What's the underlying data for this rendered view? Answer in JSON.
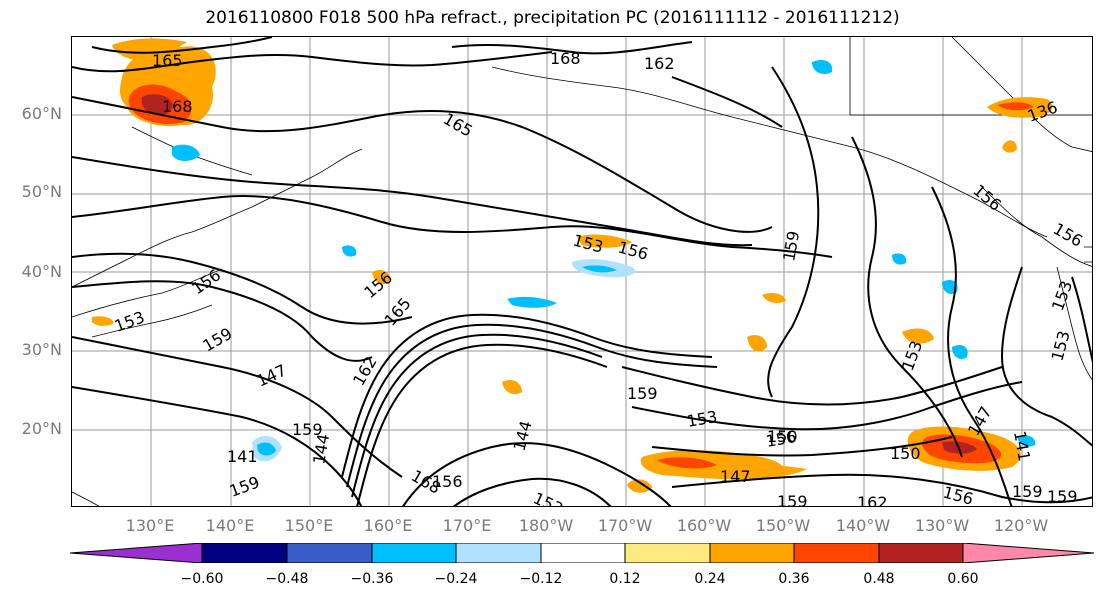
{
  "title": "2016110800 F018 500 hPa refract., precipitation PC (2016111112 - 2016111212)",
  "lat_labels": [
    "60°N",
    "50°N",
    "40°N",
    "30°N",
    "20°N"
  ],
  "lon_labels": [
    "130°E",
    "140°E",
    "150°E",
    "160°E",
    "170°E",
    "180°W",
    "170°W",
    "160°W",
    "150°W",
    "140°W",
    "130°W",
    "120°W"
  ],
  "contour_labels": [
    "165",
    "168",
    "168",
    "162",
    "165",
    "156",
    "153",
    "156",
    "159",
    "159",
    "156",
    "153",
    "159",
    "165",
    "147",
    "162",
    "144",
    "159",
    "141",
    "159",
    "168",
    "156",
    "153",
    "144",
    "159",
    "153",
    "156",
    "150",
    "147",
    "159",
    "162",
    "150",
    "156",
    "147",
    "141",
    "153",
    "159",
    "136",
    "153",
    "156",
    "153",
    "156"
  ],
  "colorbar": {
    "colors": [
      "#9b30d0",
      "#000080",
      "#3a5cc8",
      "#00bfff",
      "#b0e2ff",
      "#ffffff",
      "#ffea80",
      "#ffa500",
      "#ff4500",
      "#b22222",
      "#ff88aa"
    ],
    "ticks": [
      "−0.60",
      "−0.48",
      "−0.36",
      "−0.24",
      "−0.12",
      "0.12",
      "0.24",
      "0.36",
      "0.48",
      "0.60"
    ]
  }
}
